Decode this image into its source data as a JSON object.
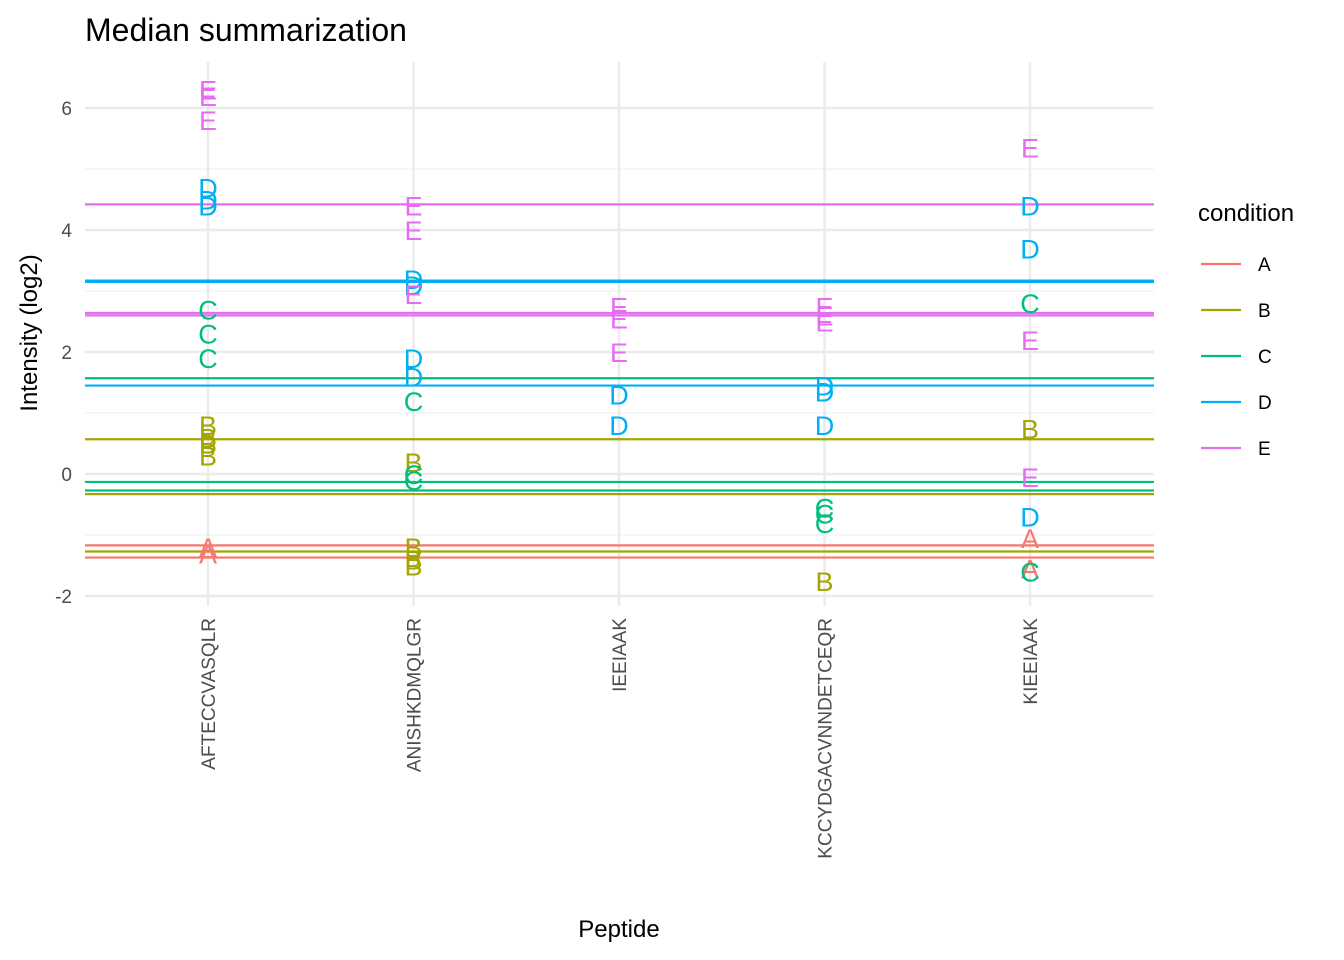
{
  "chart_data": {
    "type": "scatter",
    "title": "Median summarization",
    "xlabel": "Peptide",
    "ylabel": "Intensity (log2)",
    "categories": [
      "AFTECCVASQLR",
      "ANISHKDMQLGR",
      "IEEIAAK",
      "KCCYDGACVNNDETCEQR",
      "KIEEIAAK"
    ],
    "yticks": [
      -2,
      0,
      2,
      4,
      6
    ],
    "ytick_labels": [
      "-2",
      "0",
      "2",
      "4",
      "6"
    ],
    "ylim": [
      -2.05,
      6.7
    ],
    "grid": true,
    "legend": {
      "title": "condition",
      "placement": "right",
      "entries": [
        "A",
        "B",
        "C",
        "D",
        "E"
      ]
    },
    "colors": {
      "A": "#F8766D",
      "B": "#A3A500",
      "C": "#00BF7D",
      "D": "#00B0F6",
      "E": "#E76BF3"
    },
    "points": [
      {
        "peptide": "AFTECCVASQLR",
        "condition": "A",
        "y": -1.2
      },
      {
        "peptide": "AFTECCVASQLR",
        "condition": "A",
        "y": -1.3
      },
      {
        "peptide": "AFTECCVASQLR",
        "condition": "B",
        "y": 0.8
      },
      {
        "peptide": "AFTECCVASQLR",
        "condition": "B",
        "y": 0.6
      },
      {
        "peptide": "AFTECCVASQLR",
        "condition": "B",
        "y": 0.5
      },
      {
        "peptide": "AFTECCVASQLR",
        "condition": "B",
        "y": 0.3
      },
      {
        "peptide": "AFTECCVASQLR",
        "condition": "C",
        "y": 2.7
      },
      {
        "peptide": "AFTECCVASQLR",
        "condition": "C",
        "y": 2.3
      },
      {
        "peptide": "AFTECCVASQLR",
        "condition": "C",
        "y": 1.9
      },
      {
        "peptide": "AFTECCVASQLR",
        "condition": "D",
        "y": 4.7
      },
      {
        "peptide": "AFTECCVASQLR",
        "condition": "D",
        "y": 4.5
      },
      {
        "peptide": "AFTECCVASQLR",
        "condition": "D",
        "y": 4.4
      },
      {
        "peptide": "AFTECCVASQLR",
        "condition": "E",
        "y": 6.3
      },
      {
        "peptide": "AFTECCVASQLR",
        "condition": "E",
        "y": 6.2
      },
      {
        "peptide": "AFTECCVASQLR",
        "condition": "E",
        "y": 5.8
      },
      {
        "peptide": "ANISHKDMQLGR",
        "condition": "B",
        "y": 0.2
      },
      {
        "peptide": "ANISHKDMQLGR",
        "condition": "B",
        "y": -1.2
      },
      {
        "peptide": "ANISHKDMQLGR",
        "condition": "B",
        "y": -1.4
      },
      {
        "peptide": "ANISHKDMQLGR",
        "condition": "B",
        "y": -1.5
      },
      {
        "peptide": "ANISHKDMQLGR",
        "condition": "C",
        "y": 1.2
      },
      {
        "peptide": "ANISHKDMQLGR",
        "condition": "C",
        "y": 0.0
      },
      {
        "peptide": "ANISHKDMQLGR",
        "condition": "C",
        "y": -0.1
      },
      {
        "peptide": "ANISHKDMQLGR",
        "condition": "D",
        "y": 3.2
      },
      {
        "peptide": "ANISHKDMQLGR",
        "condition": "D",
        "y": 3.1
      },
      {
        "peptide": "ANISHKDMQLGR",
        "condition": "D",
        "y": 1.9
      },
      {
        "peptide": "ANISHKDMQLGR",
        "condition": "D",
        "y": 1.6
      },
      {
        "peptide": "ANISHKDMQLGR",
        "condition": "E",
        "y": 4.4
      },
      {
        "peptide": "ANISHKDMQLGR",
        "condition": "E",
        "y": 4.0
      },
      {
        "peptide": "ANISHKDMQLGR",
        "condition": "E",
        "y": 2.95
      },
      {
        "peptide": "IEEIAAK",
        "condition": "D",
        "y": 1.3
      },
      {
        "peptide": "IEEIAAK",
        "condition": "D",
        "y": 0.8
      },
      {
        "peptide": "IEEIAAK",
        "condition": "E",
        "y": 2.75
      },
      {
        "peptide": "IEEIAAK",
        "condition": "E",
        "y": 2.55
      },
      {
        "peptide": "IEEIAAK",
        "condition": "E",
        "y": 2.0
      },
      {
        "peptide": "KCCYDGACVNNDETCEQR",
        "condition": "B",
        "y": -1.75
      },
      {
        "peptide": "KCCYDGACVNNDETCEQR",
        "condition": "C",
        "y": -0.55
      },
      {
        "peptide": "KCCYDGACVNNDETCEQR",
        "condition": "C",
        "y": -0.65
      },
      {
        "peptide": "KCCYDGACVNNDETCEQR",
        "condition": "C",
        "y": -0.8
      },
      {
        "peptide": "KCCYDGACVNNDETCEQR",
        "condition": "D",
        "y": 1.45
      },
      {
        "peptide": "KCCYDGACVNNDETCEQR",
        "condition": "D",
        "y": 1.35
      },
      {
        "peptide": "KCCYDGACVNNDETCEQR",
        "condition": "D",
        "y": 0.8
      },
      {
        "peptide": "KCCYDGACVNNDETCEQR",
        "condition": "E",
        "y": 2.75
      },
      {
        "peptide": "KCCYDGACVNNDETCEQR",
        "condition": "E",
        "y": 2.6
      },
      {
        "peptide": "KCCYDGACVNNDETCEQR",
        "condition": "E",
        "y": 2.5
      },
      {
        "peptide": "KIEEIAAK",
        "condition": "A",
        "y": -1.05
      },
      {
        "peptide": "KIEEIAAK",
        "condition": "A",
        "y": -1.55
      },
      {
        "peptide": "KIEEIAAK",
        "condition": "B",
        "y": 0.75
      },
      {
        "peptide": "KIEEIAAK",
        "condition": "C",
        "y": 2.8
      },
      {
        "peptide": "KIEEIAAK",
        "condition": "C",
        "y": -1.6
      },
      {
        "peptide": "KIEEIAAK",
        "condition": "D",
        "y": 4.4
      },
      {
        "peptide": "KIEEIAAK",
        "condition": "D",
        "y": 3.7
      },
      {
        "peptide": "KIEEIAAK",
        "condition": "D",
        "y": -0.7
      },
      {
        "peptide": "KIEEIAAK",
        "condition": "E",
        "y": 5.35
      },
      {
        "peptide": "KIEEIAAK",
        "condition": "E",
        "y": 2.2
      },
      {
        "peptide": "KIEEIAAK",
        "condition": "E",
        "y": -0.05
      }
    ],
    "hlines": [
      {
        "condition": "E",
        "y": 4.42
      },
      {
        "condition": "D",
        "y": 3.17
      },
      {
        "condition": "D",
        "y": 3.15
      },
      {
        "condition": "E",
        "y": 2.64
      },
      {
        "condition": "E",
        "y": 2.6
      },
      {
        "condition": "C",
        "y": 1.57
      },
      {
        "condition": "D",
        "y": 1.45
      },
      {
        "condition": "B",
        "y": 0.57
      },
      {
        "condition": "C",
        "y": -0.13
      },
      {
        "condition": "C",
        "y": -0.27
      },
      {
        "condition": "B",
        "y": -0.33
      },
      {
        "condition": "A",
        "y": -1.17
      },
      {
        "condition": "B",
        "y": -1.27
      },
      {
        "condition": "A",
        "y": -1.37
      }
    ]
  }
}
